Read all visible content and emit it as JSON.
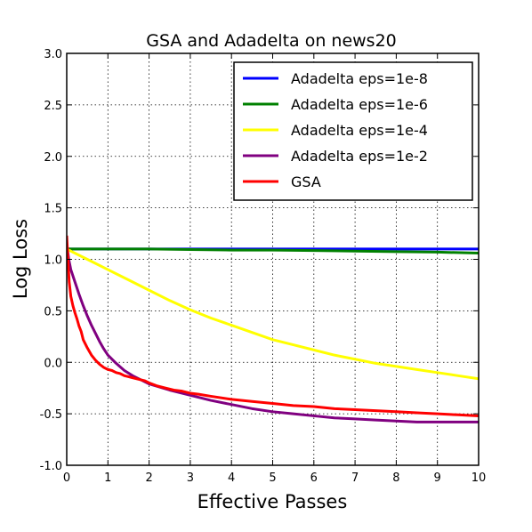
{
  "chart_data": {
    "type": "line",
    "title": "GSA and Adadelta on news20",
    "xlabel": "Effective Passes",
    "ylabel": "Log Loss",
    "xlim": [
      0,
      10
    ],
    "ylim": [
      -1.0,
      3.0
    ],
    "xticks": [
      0,
      1,
      2,
      3,
      4,
      5,
      6,
      7,
      8,
      9,
      10
    ],
    "yticks": [
      -1.0,
      -0.5,
      0.0,
      0.5,
      1.0,
      1.5,
      2.0,
      2.5,
      3.0
    ],
    "xtick_labels": [
      "0",
      "1",
      "2",
      "3",
      "4",
      "5",
      "6",
      "7",
      "8",
      "9",
      "10"
    ],
    "ytick_labels": [
      "-1.0",
      "-0.5",
      "0.0",
      "0.5",
      "1.0",
      "1.5",
      "2.0",
      "2.5",
      "3.0"
    ],
    "grid": true,
    "legend_position": "top-right",
    "series": [
      {
        "name": "Adadelta eps=1e-8",
        "color": "#0000ff",
        "x": [
          0,
          1,
          2,
          3,
          4,
          5,
          6,
          7,
          8,
          9,
          10
        ],
        "y": [
          1.1,
          1.1,
          1.1,
          1.1,
          1.1,
          1.1,
          1.1,
          1.1,
          1.1,
          1.1,
          1.1
        ]
      },
      {
        "name": "Adadelta eps=1e-6",
        "color": "#008000",
        "x": [
          0,
          1,
          2,
          3,
          4,
          5,
          6,
          7,
          8,
          9,
          10
        ],
        "y": [
          1.1,
          1.1,
          1.1,
          1.095,
          1.09,
          1.09,
          1.085,
          1.08,
          1.075,
          1.07,
          1.06
        ]
      },
      {
        "name": "Adadelta eps=1e-4",
        "color": "#ffff00",
        "x": [
          0,
          0.5,
          1,
          1.5,
          2,
          2.5,
          3,
          3.5,
          4,
          4.5,
          5,
          5.5,
          6,
          6.5,
          7,
          7.5,
          8,
          8.5,
          9,
          9.5,
          10
        ],
        "y": [
          1.1,
          1.0,
          0.9,
          0.8,
          0.7,
          0.6,
          0.51,
          0.43,
          0.36,
          0.29,
          0.22,
          0.17,
          0.12,
          0.07,
          0.03,
          -0.01,
          -0.04,
          -0.07,
          -0.1,
          -0.13,
          -0.16
        ]
      },
      {
        "name": "Adadelta eps=1e-2",
        "color": "#800080",
        "x": [
          0,
          0.05,
          0.1,
          0.2,
          0.3,
          0.4,
          0.5,
          0.6,
          0.7,
          0.8,
          0.9,
          1.0,
          1.2,
          1.4,
          1.6,
          1.8,
          2.0,
          2.5,
          3.0,
          3.5,
          4.0,
          4.5,
          5.0,
          5.5,
          6.0,
          6.5,
          7.0,
          7.5,
          8.0,
          8.5,
          9.0,
          9.5,
          10.0
        ],
        "y": [
          1.15,
          1.0,
          0.9,
          0.78,
          0.66,
          0.55,
          0.45,
          0.36,
          0.28,
          0.2,
          0.13,
          0.07,
          -0.01,
          -0.08,
          -0.13,
          -0.17,
          -0.21,
          -0.27,
          -0.32,
          -0.37,
          -0.41,
          -0.45,
          -0.48,
          -0.5,
          -0.52,
          -0.54,
          -0.55,
          -0.56,
          -0.57,
          -0.58,
          -0.58,
          -0.58,
          -0.58
        ]
      },
      {
        "name": "GSA",
        "color": "#ff0000",
        "x": [
          0,
          0.03,
          0.06,
          0.1,
          0.15,
          0.2,
          0.25,
          0.3,
          0.35,
          0.4,
          0.5,
          0.6,
          0.7,
          0.8,
          0.9,
          1.0,
          1.1,
          1.2,
          1.3,
          1.4,
          1.5,
          1.6,
          1.7,
          1.8,
          1.9,
          2.0,
          2.2,
          2.4,
          2.6,
          2.8,
          3.0,
          3.2,
          3.5,
          4.0,
          4.5,
          5.0,
          5.5,
          6.0,
          6.5,
          7.0,
          7.5,
          8.0,
          8.5,
          9.0,
          9.5,
          10.0
        ],
        "y": [
          1.23,
          1.0,
          0.78,
          0.64,
          0.55,
          0.48,
          0.42,
          0.35,
          0.3,
          0.22,
          0.14,
          0.07,
          0.02,
          -0.02,
          -0.05,
          -0.07,
          -0.08,
          -0.1,
          -0.11,
          -0.13,
          -0.14,
          -0.15,
          -0.16,
          -0.17,
          -0.18,
          -0.2,
          -0.23,
          -0.25,
          -0.27,
          -0.28,
          -0.3,
          -0.31,
          -0.33,
          -0.36,
          -0.38,
          -0.4,
          -0.42,
          -0.43,
          -0.45,
          -0.46,
          -0.47,
          -0.48,
          -0.49,
          -0.5,
          -0.51,
          -0.52
        ]
      }
    ]
  }
}
